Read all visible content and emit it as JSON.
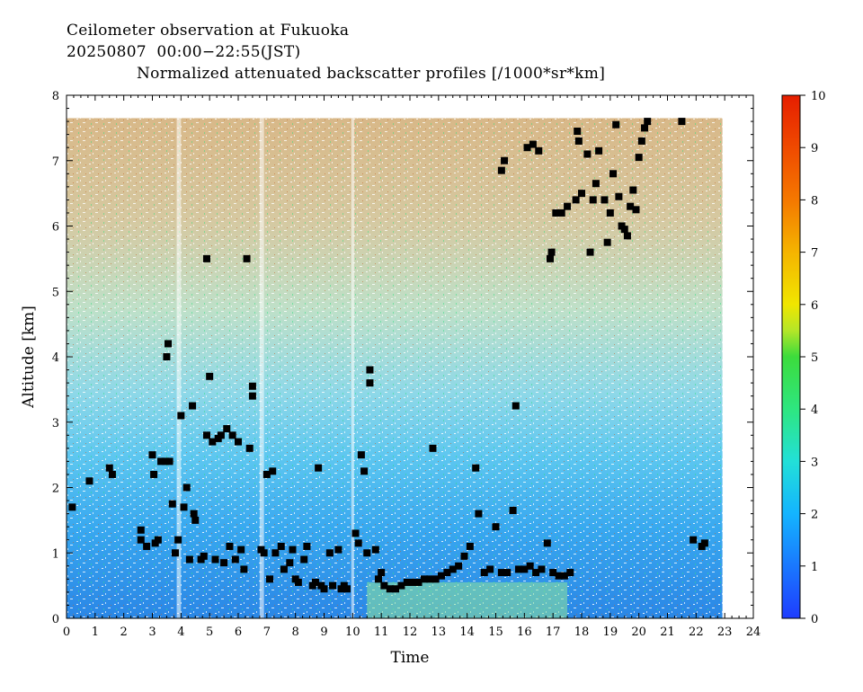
{
  "header": {
    "line1": "Ceilometer observation at Fukuoka",
    "line2": "20250807  00:00−22:55(JST)",
    "line3": "Normalized attenuated backscatter profiles [/1000*sr*km]"
  },
  "chart_data": {
    "type": "heatmap",
    "title": "Normalized attenuated backscatter profiles [/1000*sr*km]",
    "xlabel": "Time",
    "ylabel": "Altitude [km]",
    "xlim": [
      0,
      24
    ],
    "ylim": [
      0,
      8
    ],
    "x_ticks": [
      "0",
      "1",
      "2",
      "3",
      "4",
      "5",
      "6",
      "7",
      "8",
      "9",
      "10",
      "11",
      "12",
      "13",
      "14",
      "15",
      "16",
      "17",
      "18",
      "19",
      "20",
      "21",
      "22",
      "23",
      "24"
    ],
    "y_ticks": [
      "0",
      "1",
      "2",
      "3",
      "4",
      "5",
      "6",
      "7",
      "8"
    ],
    "data_time_range": [
      0,
      22.92
    ],
    "data_altitude_max": 7.65,
    "colorbar": {
      "min": 0,
      "max": 10,
      "ticks": [
        "0",
        "1",
        "2",
        "3",
        "4",
        "5",
        "6",
        "7",
        "8",
        "9",
        "10"
      ],
      "colors": [
        "#1e3cff",
        "#1a78ff",
        "#14b4ff",
        "#22e0d8",
        "#2ee680",
        "#3cdc3c",
        "#b4e628",
        "#f0e600",
        "#f5b400",
        "#f57800",
        "#e61e00"
      ]
    },
    "cloud_base_points": [
      [
        0.2,
        1.7
      ],
      [
        0.8,
        2.1
      ],
      [
        1.5,
        2.3
      ],
      [
        1.6,
        2.2
      ],
      [
        2.6,
        1.35
      ],
      [
        2.6,
        1.2
      ],
      [
        2.8,
        1.1
      ],
      [
        3.0,
        2.5
      ],
      [
        3.05,
        2.2
      ],
      [
        3.1,
        1.15
      ],
      [
        3.2,
        1.2
      ],
      [
        3.3,
        2.4
      ],
      [
        3.45,
        2.4
      ],
      [
        3.5,
        4.0
      ],
      [
        3.55,
        4.2
      ],
      [
        3.6,
        2.4
      ],
      [
        3.7,
        1.75
      ],
      [
        3.8,
        1.0
      ],
      [
        3.9,
        1.2
      ],
      [
        4.0,
        3.1
      ],
      [
        4.1,
        1.7
      ],
      [
        4.2,
        2.0
      ],
      [
        4.3,
        0.9
      ],
      [
        4.4,
        3.25
      ],
      [
        4.45,
        1.6
      ],
      [
        4.5,
        1.5
      ],
      [
        4.7,
        0.9
      ],
      [
        4.8,
        0.95
      ],
      [
        4.9,
        2.8
      ],
      [
        4.9,
        5.5
      ],
      [
        5.0,
        3.7
      ],
      [
        5.1,
        2.7
      ],
      [
        5.2,
        0.9
      ],
      [
        5.3,
        2.75
      ],
      [
        5.4,
        2.8
      ],
      [
        5.5,
        0.85
      ],
      [
        5.6,
        2.9
      ],
      [
        5.7,
        1.1
      ],
      [
        5.8,
        2.8
      ],
      [
        5.9,
        0.9
      ],
      [
        6.0,
        2.7
      ],
      [
        6.1,
        1.05
      ],
      [
        6.2,
        0.75
      ],
      [
        6.3,
        5.5
      ],
      [
        6.4,
        2.6
      ],
      [
        6.5,
        3.4
      ],
      [
        6.5,
        3.55
      ],
      [
        6.8,
        1.05
      ],
      [
        6.9,
        1.0
      ],
      [
        7.0,
        2.2
      ],
      [
        7.1,
        0.6
      ],
      [
        7.2,
        2.25
      ],
      [
        7.3,
        1.0
      ],
      [
        7.5,
        1.1
      ],
      [
        7.6,
        0.75
      ],
      [
        7.8,
        0.85
      ],
      [
        7.9,
        1.05
      ],
      [
        8.0,
        0.6
      ],
      [
        8.1,
        0.55
      ],
      [
        8.3,
        0.9
      ],
      [
        8.4,
        1.1
      ],
      [
        8.6,
        0.5
      ],
      [
        8.7,
        0.55
      ],
      [
        8.8,
        2.3
      ],
      [
        8.9,
        0.5
      ],
      [
        9.0,
        0.45
      ],
      [
        9.2,
        1.0
      ],
      [
        9.3,
        0.5
      ],
      [
        9.5,
        1.05
      ],
      [
        9.6,
        0.45
      ],
      [
        9.7,
        0.5
      ],
      [
        9.8,
        0.45
      ],
      [
        10.1,
        1.3
      ],
      [
        10.2,
        1.15
      ],
      [
        10.3,
        2.5
      ],
      [
        10.4,
        2.25
      ],
      [
        10.5,
        1.0
      ],
      [
        10.6,
        3.8
      ],
      [
        10.6,
        3.6
      ],
      [
        10.8,
        1.05
      ],
      [
        10.9,
        0.6
      ],
      [
        11.0,
        0.7
      ],
      [
        11.1,
        0.5
      ],
      [
        11.3,
        0.45
      ],
      [
        11.5,
        0.45
      ],
      [
        11.7,
        0.5
      ],
      [
        11.9,
        0.55
      ],
      [
        12.1,
        0.55
      ],
      [
        12.3,
        0.55
      ],
      [
        12.5,
        0.6
      ],
      [
        12.7,
        0.6
      ],
      [
        12.8,
        2.6
      ],
      [
        12.9,
        0.6
      ],
      [
        13.1,
        0.65
      ],
      [
        13.3,
        0.7
      ],
      [
        13.5,
        0.75
      ],
      [
        13.7,
        0.8
      ],
      [
        13.9,
        0.95
      ],
      [
        14.1,
        1.1
      ],
      [
        14.3,
        2.3
      ],
      [
        14.4,
        1.6
      ],
      [
        14.6,
        0.7
      ],
      [
        14.8,
        0.75
      ],
      [
        15.0,
        1.4
      ],
      [
        15.2,
        0.7
      ],
      [
        15.4,
        0.7
      ],
      [
        15.6,
        1.65
      ],
      [
        15.7,
        3.25
      ],
      [
        15.8,
        0.75
      ],
      [
        16.0,
        0.75
      ],
      [
        16.2,
        0.8
      ],
      [
        16.4,
        0.7
      ],
      [
        16.6,
        0.75
      ],
      [
        16.8,
        1.15
      ],
      [
        17.0,
        0.7
      ],
      [
        17.2,
        0.65
      ],
      [
        17.4,
        0.65
      ],
      [
        17.6,
        0.7
      ],
      [
        15.2,
        6.85
      ],
      [
        15.3,
        7.0
      ],
      [
        16.1,
        7.2
      ],
      [
        16.3,
        7.25
      ],
      [
        16.5,
        7.15
      ],
      [
        16.9,
        5.5
      ],
      [
        16.95,
        5.6
      ],
      [
        17.1,
        6.2
      ],
      [
        17.3,
        6.2
      ],
      [
        17.5,
        6.3
      ],
      [
        17.8,
        6.4
      ],
      [
        17.85,
        7.45
      ],
      [
        17.9,
        7.3
      ],
      [
        18.0,
        6.5
      ],
      [
        18.2,
        7.1
      ],
      [
        18.3,
        5.6
      ],
      [
        18.4,
        6.4
      ],
      [
        18.5,
        6.65
      ],
      [
        18.6,
        7.15
      ],
      [
        18.8,
        6.4
      ],
      [
        18.9,
        5.75
      ],
      [
        19.0,
        6.2
      ],
      [
        19.1,
        6.8
      ],
      [
        19.2,
        7.55
      ],
      [
        19.3,
        6.45
      ],
      [
        19.4,
        6.0
      ],
      [
        19.5,
        5.95
      ],
      [
        19.6,
        5.85
      ],
      [
        19.7,
        6.3
      ],
      [
        19.8,
        6.55
      ],
      [
        19.9,
        6.25
      ],
      [
        20.0,
        7.05
      ],
      [
        20.1,
        7.3
      ],
      [
        20.2,
        7.5
      ],
      [
        20.3,
        7.6
      ],
      [
        21.5,
        7.6
      ],
      [
        21.9,
        1.2
      ],
      [
        22.2,
        1.1
      ],
      [
        22.3,
        1.15
      ]
    ],
    "cloud_base_marker": "black square"
  }
}
